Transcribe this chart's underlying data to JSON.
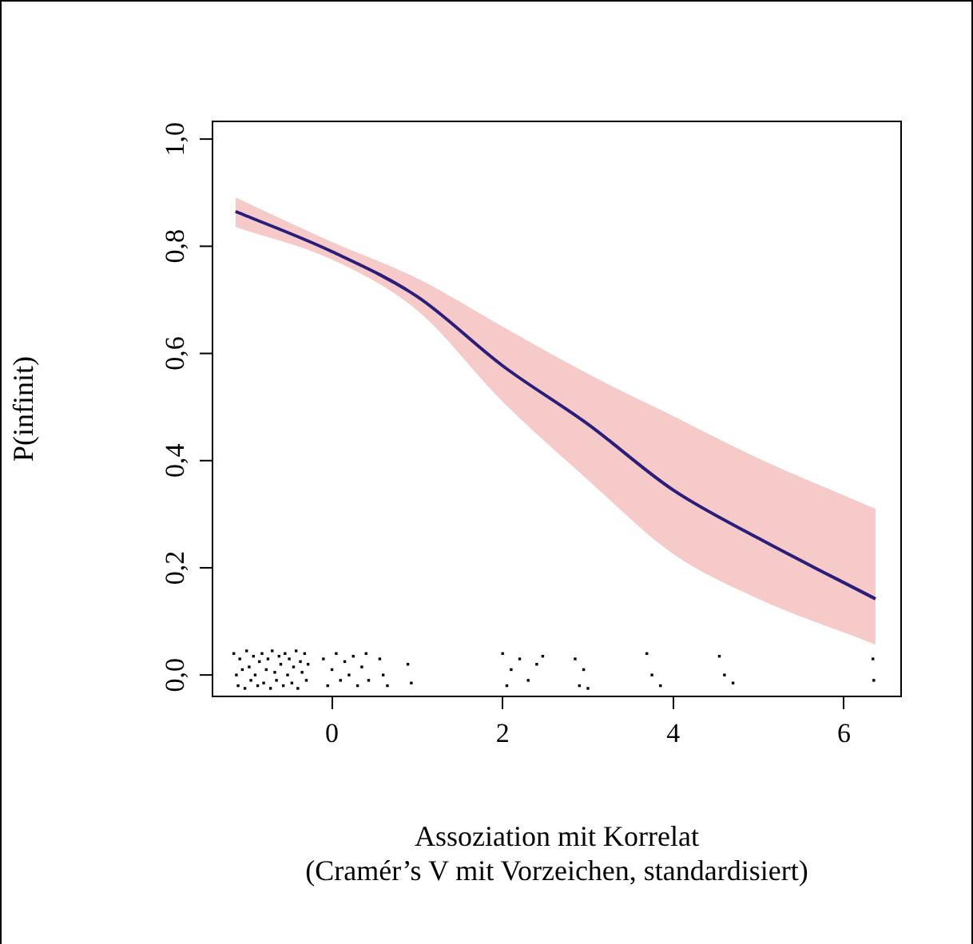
{
  "chart_data": {
    "type": "line",
    "xlabel": "Assoziation mit Korrelat\n(Cramér’s V mit Vorzeichen, standardisiert)",
    "ylabel": "P(infinit)",
    "xlim": [
      -1.4,
      6.67
    ],
    "ylim": [
      -0.04,
      1.033
    ],
    "xticks": [
      0,
      2,
      4,
      6
    ],
    "yticks": [
      {
        "value": 0,
        "label": "0,0"
      },
      {
        "value": 0.2,
        "label": "0,2"
      },
      {
        "value": 0.4,
        "label": "0,4"
      },
      {
        "value": 0.6,
        "label": "0,6"
      },
      {
        "value": 0.8,
        "label": "0,8"
      },
      {
        "value": 1,
        "label": "1,0"
      }
    ],
    "grid": false,
    "legend": false,
    "series": [
      {
        "type": "line",
        "color": "#2b1d7a",
        "marker": "none",
        "x": [
          -1.13,
          0,
          1,
          2,
          3,
          4,
          5,
          6.37
        ],
        "values": [
          0.865,
          0.79,
          0.706,
          0.577,
          0.468,
          0.345,
          0.255,
          0.142
        ],
        "lower": [
          0.836,
          0.775,
          0.68,
          0.51,
          0.364,
          0.226,
          0.142,
          0.057
        ],
        "upper": [
          0.891,
          0.808,
          0.74,
          0.65,
          0.562,
          0.483,
          0.404,
          0.31
        ]
      },
      {
        "type": "scatter",
        "color": "#000000",
        "marker": "square",
        "x": [
          -1.15,
          -1.12,
          -1.1,
          -1.08,
          -1.05,
          -1.02,
          -1.0,
          -0.97,
          -0.95,
          -0.92,
          -0.9,
          -0.87,
          -0.85,
          -0.82,
          -0.8,
          -0.77,
          -0.75,
          -0.72,
          -0.7,
          -0.67,
          -0.65,
          -0.62,
          -0.6,
          -0.57,
          -0.55,
          -0.52,
          -0.5,
          -0.47,
          -0.45,
          -0.42,
          -0.4,
          -0.37,
          -0.35,
          -0.32,
          -0.3,
          -0.28,
          -0.1,
          -0.05,
          0.0,
          0.05,
          0.1,
          0.15,
          0.2,
          0.25,
          0.3,
          0.35,
          0.4,
          0.43,
          0.56,
          0.6,
          0.65,
          0.89,
          0.93,
          2.0,
          2.05,
          2.1,
          2.2,
          2.3,
          2.4,
          2.47,
          2.85,
          2.9,
          2.95,
          3.0,
          3.69,
          3.75,
          3.85,
          4.54,
          4.6,
          4.7,
          6.34,
          6.35
        ],
        "values": [
          0.04,
          0.0,
          -0.02,
          0.03,
          0.01,
          -0.025,
          0.045,
          0.015,
          -0.01,
          0.035,
          0.0,
          -0.02,
          0.025,
          0.04,
          -0.015,
          0.01,
          0.03,
          -0.025,
          0.045,
          0.005,
          -0.01,
          0.035,
          0.02,
          -0.02,
          0.04,
          0.0,
          0.03,
          -0.015,
          0.015,
          0.045,
          -0.025,
          0.025,
          0.005,
          0.04,
          -0.01,
          0.02,
          0.03,
          -0.02,
          0.01,
          0.04,
          -0.01,
          0.025,
          0.0,
          0.035,
          -0.02,
          0.015,
          0.04,
          -0.01,
          0.03,
          0.0,
          -0.02,
          0.02,
          -0.015,
          0.04,
          -0.02,
          0.01,
          0.03,
          -0.01,
          0.02,
          0.035,
          0.03,
          -0.02,
          0.01,
          -0.025,
          0.04,
          0.0,
          -0.02,
          0.035,
          0.0,
          -0.015,
          0.03,
          -0.01
        ]
      }
    ]
  }
}
